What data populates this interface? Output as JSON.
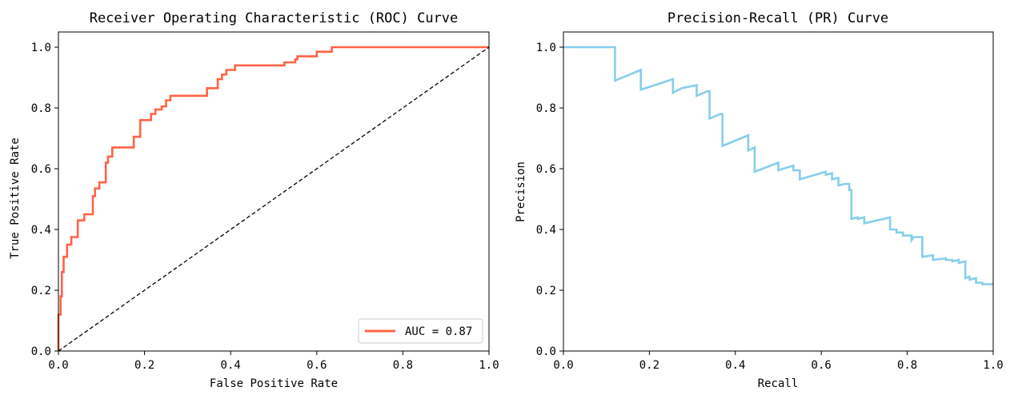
{
  "chart_data": [
    {
      "type": "line",
      "title": "Receiver Operating Characteristic (ROC) Curve",
      "xlabel": "False Positive Rate",
      "ylabel": "True Positive Rate",
      "xlim": [
        0,
        1
      ],
      "ylim": [
        0,
        1.05
      ],
      "xticks": [
        "0.0",
        "0.2",
        "0.4",
        "0.6",
        "0.8",
        "1.0"
      ],
      "yticks": [
        "0.0",
        "0.2",
        "0.4",
        "0.6",
        "0.8",
        "1.0"
      ],
      "grid": false,
      "legend": {
        "placement": "lower-right",
        "entries": [
          "AUC = 0.87"
        ]
      },
      "series": [
        {
          "name": "AUC = 0.87",
          "color": "#ff6347",
          "style": "solid",
          "points": [
            [
              0,
              0
            ],
            [
              0,
              0.12
            ],
            [
              0.005,
              0.12
            ],
            [
              0.005,
              0.18
            ],
            [
              0.008,
              0.18
            ],
            [
              0.008,
              0.26
            ],
            [
              0.012,
              0.26
            ],
            [
              0.012,
              0.31
            ],
            [
              0.02,
              0.31
            ],
            [
              0.02,
              0.35
            ],
            [
              0.03,
              0.35
            ],
            [
              0.03,
              0.375
            ],
            [
              0.045,
              0.375
            ],
            [
              0.045,
              0.43
            ],
            [
              0.06,
              0.43
            ],
            [
              0.06,
              0.45
            ],
            [
              0.08,
              0.45
            ],
            [
              0.08,
              0.51
            ],
            [
              0.085,
              0.51
            ],
            [
              0.085,
              0.535
            ],
            [
              0.095,
              0.535
            ],
            [
              0.095,
              0.555
            ],
            [
              0.11,
              0.555
            ],
            [
              0.11,
              0.62
            ],
            [
              0.115,
              0.62
            ],
            [
              0.115,
              0.64
            ],
            [
              0.125,
              0.64
            ],
            [
              0.125,
              0.67
            ],
            [
              0.175,
              0.67
            ],
            [
              0.175,
              0.705
            ],
            [
              0.19,
              0.705
            ],
            [
              0.19,
              0.76
            ],
            [
              0.215,
              0.76
            ],
            [
              0.215,
              0.78
            ],
            [
              0.225,
              0.78
            ],
            [
              0.225,
              0.795
            ],
            [
              0.24,
              0.795
            ],
            [
              0.24,
              0.805
            ],
            [
              0.25,
              0.805
            ],
            [
              0.25,
              0.825
            ],
            [
              0.26,
              0.825
            ],
            [
              0.26,
              0.84
            ],
            [
              0.345,
              0.84
            ],
            [
              0.345,
              0.865
            ],
            [
              0.37,
              0.865
            ],
            [
              0.37,
              0.895
            ],
            [
              0.38,
              0.895
            ],
            [
              0.38,
              0.91
            ],
            [
              0.39,
              0.91
            ],
            [
              0.39,
              0.925
            ],
            [
              0.41,
              0.925
            ],
            [
              0.41,
              0.94
            ],
            [
              0.525,
              0.94
            ],
            [
              0.525,
              0.95
            ],
            [
              0.55,
              0.95
            ],
            [
              0.55,
              0.96
            ],
            [
              0.555,
              0.96
            ],
            [
              0.555,
              0.97
            ],
            [
              0.6,
              0.97
            ],
            [
              0.6,
              0.985
            ],
            [
              0.635,
              0.985
            ],
            [
              0.635,
              1.0
            ],
            [
              1.0,
              1.0
            ]
          ]
        },
        {
          "name": "",
          "color": "#000000",
          "style": "dashed",
          "points": [
            [
              0,
              0
            ],
            [
              1,
              1
            ]
          ]
        }
      ]
    },
    {
      "type": "line",
      "title": "Precision-Recall (PR) Curve",
      "xlabel": "Recall",
      "ylabel": "Precision",
      "xlim": [
        0,
        1
      ],
      "ylim": [
        0,
        1.05
      ],
      "xticks": [
        "0.0",
        "0.2",
        "0.4",
        "0.6",
        "0.8",
        "1.0"
      ],
      "yticks": [
        "0.0",
        "0.2",
        "0.4",
        "0.6",
        "0.8",
        "1.0"
      ],
      "grid": false,
      "series": [
        {
          "name": "",
          "color": "#87ceeb",
          "style": "solid",
          "points": [
            [
              0,
              1.0
            ],
            [
              0.12,
              1.0
            ],
            [
              0.12,
              0.89
            ],
            [
              0.18,
              0.925
            ],
            [
              0.18,
              0.86
            ],
            [
              0.255,
              0.895
            ],
            [
              0.255,
              0.85
            ],
            [
              0.275,
              0.865
            ],
            [
              0.31,
              0.875
            ],
            [
              0.31,
              0.84
            ],
            [
              0.335,
              0.855
            ],
            [
              0.34,
              0.855
            ],
            [
              0.34,
              0.765
            ],
            [
              0.365,
              0.78
            ],
            [
              0.37,
              0.78
            ],
            [
              0.37,
              0.675
            ],
            [
              0.43,
              0.71
            ],
            [
              0.43,
              0.66
            ],
            [
              0.445,
              0.67
            ],
            [
              0.445,
              0.59
            ],
            [
              0.5,
              0.62
            ],
            [
              0.5,
              0.595
            ],
            [
              0.535,
              0.61
            ],
            [
              0.535,
              0.595
            ],
            [
              0.55,
              0.595
            ],
            [
              0.55,
              0.565
            ],
            [
              0.61,
              0.59
            ],
            [
              0.61,
              0.58
            ],
            [
              0.625,
              0.585
            ],
            [
              0.625,
              0.565
            ],
            [
              0.64,
              0.57
            ],
            [
              0.64,
              0.545
            ],
            [
              0.655,
              0.55
            ],
            [
              0.665,
              0.55
            ],
            [
              0.665,
              0.53
            ],
            [
              0.67,
              0.53
            ],
            [
              0.67,
              0.435
            ],
            [
              0.685,
              0.44
            ],
            [
              0.685,
              0.435
            ],
            [
              0.7,
              0.44
            ],
            [
              0.7,
              0.42
            ],
            [
              0.76,
              0.44
            ],
            [
              0.76,
              0.4
            ],
            [
              0.775,
              0.4
            ],
            [
              0.775,
              0.39
            ],
            [
              0.79,
              0.39
            ],
            [
              0.79,
              0.38
            ],
            [
              0.81,
              0.38
            ],
            [
              0.81,
              0.365
            ],
            [
              0.815,
              0.375
            ],
            [
              0.835,
              0.375
            ],
            [
              0.835,
              0.31
            ],
            [
              0.86,
              0.315
            ],
            [
              0.86,
              0.3
            ],
            [
              0.89,
              0.305
            ],
            [
              0.89,
              0.3
            ],
            [
              0.905,
              0.3
            ],
            [
              0.905,
              0.295
            ],
            [
              0.92,
              0.3
            ],
            [
              0.92,
              0.29
            ],
            [
              0.935,
              0.295
            ],
            [
              0.935,
              0.24
            ],
            [
              0.945,
              0.245
            ],
            [
              0.945,
              0.235
            ],
            [
              0.96,
              0.24
            ],
            [
              0.96,
              0.225
            ],
            [
              0.975,
              0.225
            ],
            [
              0.975,
              0.22
            ],
            [
              1.0,
              0.22
            ]
          ]
        }
      ]
    }
  ]
}
